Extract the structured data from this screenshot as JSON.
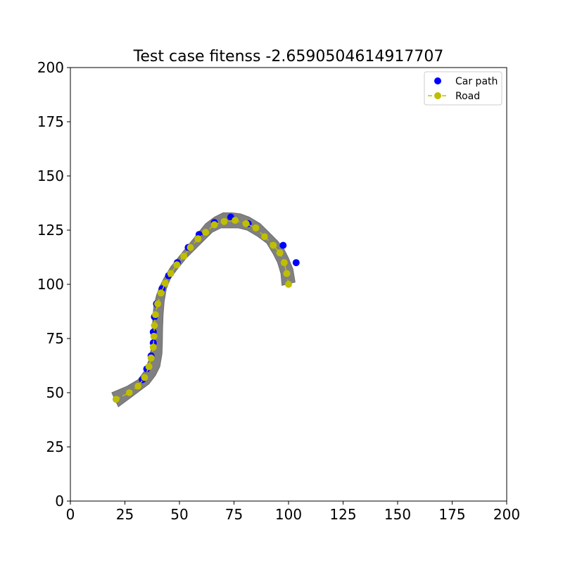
{
  "chart_data": {
    "type": "scatter",
    "title": "Test case fitenss -2.6590504614917707",
    "xlabel": "",
    "ylabel": "",
    "xlim": [
      0,
      200
    ],
    "ylim": [
      0,
      200
    ],
    "x_ticks": [
      0,
      25,
      50,
      75,
      100,
      125,
      150,
      175,
      200
    ],
    "y_ticks": [
      0,
      25,
      50,
      75,
      100,
      125,
      150,
      175,
      200
    ],
    "grid": false,
    "legend_position": "top-right",
    "road_polygon": [
      [
        19,
        50
      ],
      [
        26,
        53
      ],
      [
        31,
        56
      ],
      [
        34,
        60
      ],
      [
        36,
        65
      ],
      [
        37,
        70
      ],
      [
        37.5,
        75
      ],
      [
        37.6,
        80
      ],
      [
        37.8,
        85
      ],
      [
        38.3,
        90
      ],
      [
        39.5,
        95
      ],
      [
        41,
        99
      ],
      [
        43,
        103
      ],
      [
        46,
        108
      ],
      [
        50,
        113
      ],
      [
        54,
        118
      ],
      [
        58,
        123
      ],
      [
        62,
        128
      ],
      [
        66,
        131
      ],
      [
        70,
        133
      ],
      [
        74,
        133
      ],
      [
        78,
        132.5
      ],
      [
        82,
        131
      ],
      [
        87,
        128
      ],
      [
        91,
        124
      ],
      [
        95,
        120
      ],
      [
        98,
        116
      ],
      [
        100,
        112
      ],
      [
        102,
        107
      ],
      [
        103,
        101
      ],
      [
        97,
        99.5
      ],
      [
        96.5,
        105
      ],
      [
        95,
        110
      ],
      [
        93,
        114
      ],
      [
        90,
        119
      ],
      [
        86,
        122
      ],
      [
        81,
        125
      ],
      [
        77,
        126
      ],
      [
        73,
        126
      ],
      [
        69,
        126
      ],
      [
        65,
        124
      ],
      [
        61,
        120
      ],
      [
        57,
        116
      ],
      [
        53,
        112
      ],
      [
        49,
        107
      ],
      [
        46,
        103
      ],
      [
        44,
        98
      ],
      [
        43,
        92
      ],
      [
        42.5,
        86
      ],
      [
        42.3,
        80
      ],
      [
        42.2,
        74
      ],
      [
        42,
        68
      ],
      [
        41,
        62
      ],
      [
        39,
        58
      ],
      [
        36,
        54
      ],
      [
        32,
        51
      ],
      [
        28,
        48
      ],
      [
        22,
        43.5
      ]
    ],
    "series": [
      {
        "name": "Car path",
        "color": "#0000ff",
        "points": [
          [
            21,
            47
          ],
          [
            27,
            50
          ],
          [
            31,
            53
          ],
          [
            33,
            56
          ],
          [
            35,
            61
          ],
          [
            37,
            67
          ],
          [
            38,
            73
          ],
          [
            38,
            78
          ],
          [
            38.5,
            85
          ],
          [
            39.5,
            91
          ],
          [
            42,
            98
          ],
          [
            45,
            104
          ],
          [
            49,
            110
          ],
          [
            54,
            117
          ],
          [
            59,
            123
          ],
          [
            66,
            128.5
          ],
          [
            73.5,
            131
          ],
          [
            81.5,
            128
          ],
          [
            89,
            122
          ],
          [
            97.5,
            118
          ],
          [
            103.5,
            110
          ]
        ]
      },
      {
        "name": "Road",
        "color": "#bfbf00",
        "points": [
          [
            21,
            47
          ],
          [
            27,
            50
          ],
          [
            31,
            53
          ],
          [
            34,
            57
          ],
          [
            36,
            62
          ],
          [
            37,
            66
          ],
          [
            38,
            71
          ],
          [
            38.3,
            76
          ],
          [
            38.5,
            81
          ],
          [
            39,
            86
          ],
          [
            40,
            91
          ],
          [
            41.5,
            96
          ],
          [
            43.5,
            100.5
          ],
          [
            46,
            105
          ],
          [
            48.8,
            109
          ],
          [
            52,
            113
          ],
          [
            55,
            117
          ],
          [
            58.5,
            121
          ],
          [
            62,
            124
          ],
          [
            66,
            127.5
          ],
          [
            70.5,
            129
          ],
          [
            75.5,
            129.5
          ],
          [
            80.5,
            128
          ],
          [
            85,
            126
          ],
          [
            89,
            122
          ],
          [
            93,
            118
          ],
          [
            96,
            114.5
          ],
          [
            98,
            110
          ],
          [
            99.2,
            105
          ],
          [
            100,
            100
          ]
        ]
      }
    ]
  }
}
